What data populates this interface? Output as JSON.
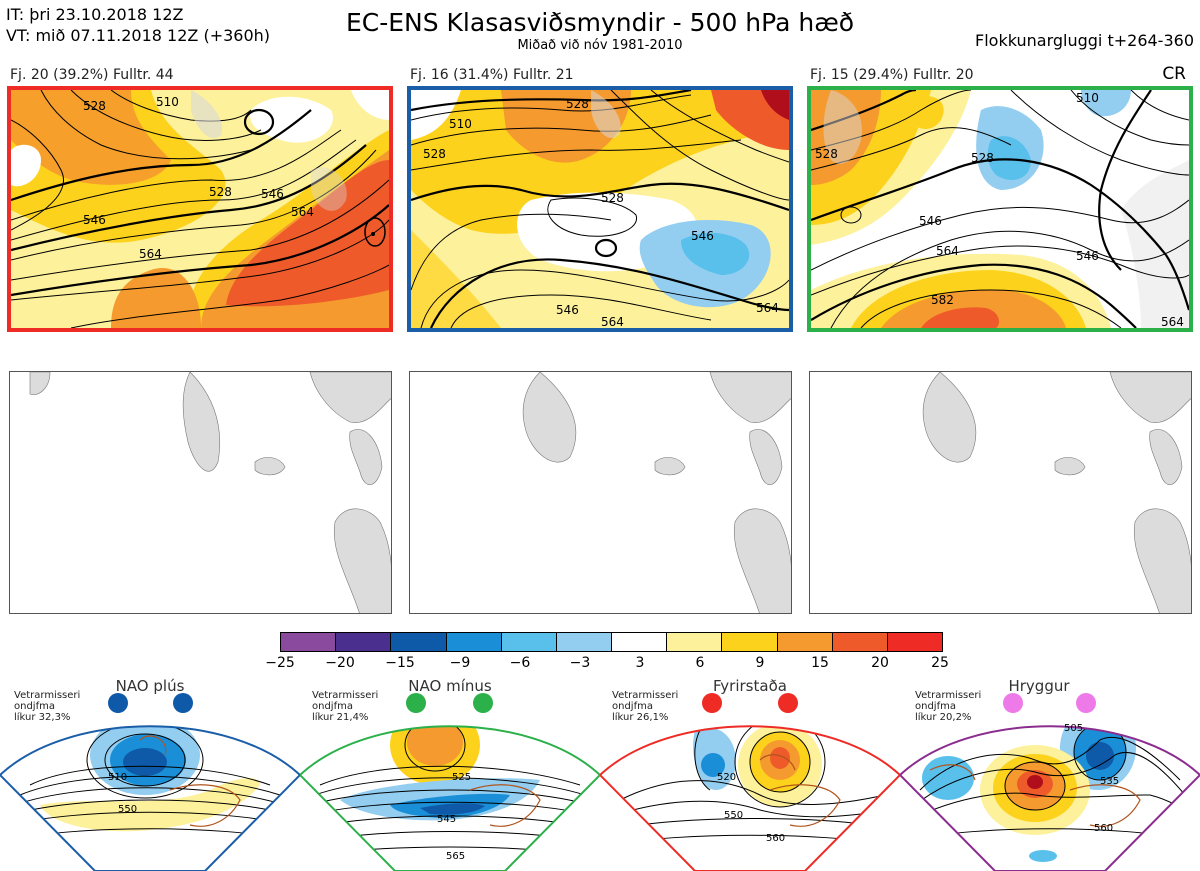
{
  "header": {
    "it_line": "IT: þri 23.10.2018 12Z",
    "vt_line": "VT: mið 07.11.2018 12Z  (+360h)",
    "title": "EC-ENS Klasasviðsmyndir - 500 hPa hæð",
    "subtitle": "Miðað við nóv 1981-2010",
    "window": "Flokkunargluggi t+264-360",
    "cr": "CR"
  },
  "clusters": [
    {
      "label": "Fj. 20 (39.2%)   Fulltr. 44",
      "border_color": "#ee2b25",
      "contours": [
        "528",
        "510",
        "528",
        "546",
        "564",
        "546",
        "564"
      ]
    },
    {
      "label": "Fj. 16 (31.4%)   Fulltr. 21",
      "border_color": "#1a5ea8",
      "contours": [
        "510",
        "528",
        "528",
        "528",
        "546",
        "546",
        "564",
        "564"
      ]
    },
    {
      "label": "Fj. 15 (29.4%)   Fulltr. 20",
      "border_color": "#2bb04a",
      "contours": [
        "510",
        "528",
        "528",
        "546",
        "564",
        "546",
        "582",
        "564"
      ]
    }
  ],
  "colorbar": {
    "colors": [
      "#8a4a9e",
      "#4a2f8f",
      "#0e5aa8",
      "#1a8fd8",
      "#59c0ec",
      "#93cdf0",
      "#ffffff",
      "#fdf19b",
      "#fdd21c",
      "#f59a2e",
      "#ef5a2a",
      "#ee2b25",
      "#b00e1a"
    ],
    "labels": [
      "−25",
      "−20",
      "−15",
      "−9",
      "−6",
      "−3",
      "3",
      "6",
      "9",
      "15",
      "20",
      "25"
    ]
  },
  "regimes": [
    {
      "name": "NAO plús",
      "note": [
        "Vetrarmisseri",
        "ondjfma",
        "líkur 32,3%"
      ],
      "color": "#1a5ea8",
      "dot": "#0e5aa8",
      "contours": [
        "510",
        "550"
      ]
    },
    {
      "name": "NAO mínus",
      "note": [
        "Vetrarmisseri",
        "ondjfma",
        "líkur 21,4%"
      ],
      "color": "#2bb04a",
      "dot": "#2bb04a",
      "contours": [
        "525",
        "545",
        "565"
      ]
    },
    {
      "name": "Fyrirstaða",
      "note": [
        "Vetrarmisseri",
        "ondjfma",
        "líkur 26,1%"
      ],
      "color": "#ee2b25",
      "dot": "#ee2b25",
      "contours": [
        "520",
        "550",
        "560"
      ]
    },
    {
      "name": "Hryggur",
      "note": [
        "Vetrarmisseri",
        "ondjfma",
        "líkur 20,2%"
      ],
      "color": "#8b2c8f",
      "dot": "#ee7aea",
      "contours": [
        "505",
        "535",
        "560"
      ]
    }
  ]
}
